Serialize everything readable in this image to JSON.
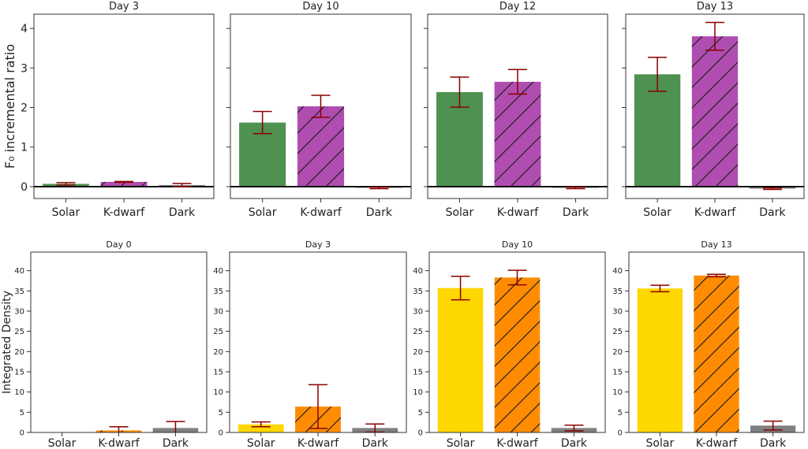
{
  "colors": {
    "solar_top": "#4e9150",
    "kdwarf_top": "#b04db0",
    "dark": "#808080",
    "solar_bottom": "#ffd700",
    "kdwarf_bottom": "#ff8c00",
    "error_bar": "#8b0000",
    "hatch": "#222222",
    "zero_line": "#000000",
    "axis": "#333333"
  },
  "chart_data": [
    {
      "type": "bar",
      "row": "top",
      "title": "Day 3",
      "ylabel": "F₀ incremental ratio",
      "categories": [
        "Solar",
        "K-dwarf",
        "Dark"
      ],
      "values": [
        0.07,
        0.12,
        0.04
      ],
      "errors": [
        0.03,
        0.01,
        0.04
      ],
      "ylim": [
        -0.3,
        4.36
      ],
      "yticks": [
        0,
        1,
        2,
        3,
        4
      ],
      "show_ytick_labels": true,
      "zero_line": true
    },
    {
      "type": "bar",
      "row": "top",
      "title": "Day 10",
      "ylabel": "",
      "categories": [
        "Solar",
        "K-dwarf",
        "Dark"
      ],
      "values": [
        1.62,
        2.03,
        -0.03
      ],
      "errors": [
        0.28,
        0.28,
        0.02
      ],
      "ylim": [
        -0.3,
        4.36
      ],
      "yticks": [
        0,
        1,
        2,
        3,
        4
      ],
      "show_ytick_labels": false,
      "zero_line": true
    },
    {
      "type": "bar",
      "row": "top",
      "title": "Day 12",
      "ylabel": "",
      "categories": [
        "Solar",
        "K-dwarf",
        "Dark"
      ],
      "values": [
        2.39,
        2.65,
        -0.03
      ],
      "errors": [
        0.38,
        0.31,
        0.02
      ],
      "ylim": [
        -0.3,
        4.36
      ],
      "yticks": [
        0,
        1,
        2,
        3,
        4
      ],
      "show_ytick_labels": false,
      "zero_line": true
    },
    {
      "type": "bar",
      "row": "top",
      "title": "Day 13",
      "ylabel": "",
      "categories": [
        "Solar",
        "K-dwarf",
        "Dark"
      ],
      "values": [
        2.84,
        3.8,
        -0.05
      ],
      "errors": [
        0.43,
        0.35,
        0.02
      ],
      "ylim": [
        -0.3,
        4.36
      ],
      "yticks": [
        0,
        1,
        2,
        3,
        4
      ],
      "show_ytick_labels": false,
      "zero_line": true
    },
    {
      "type": "bar",
      "row": "bottom",
      "title": "Day 0",
      "ylabel": "Integrated Density",
      "categories": [
        "Solar",
        "K-dwarf",
        "Dark"
      ],
      "values": [
        0.0,
        0.5,
        1.1
      ],
      "errors": [
        0.0,
        0.9,
        1.6
      ],
      "ylim": [
        0,
        44.6
      ],
      "yticks": [
        0,
        5,
        10,
        15,
        20,
        25,
        30,
        35,
        40
      ],
      "show_ytick_labels": true,
      "zero_line": false
    },
    {
      "type": "bar",
      "row": "bottom",
      "title": "Day 3",
      "ylabel": "",
      "categories": [
        "Solar",
        "K-dwarf",
        "Dark"
      ],
      "values": [
        2.0,
        6.4,
        1.1
      ],
      "errors": [
        0.6,
        5.4,
        1.0
      ],
      "ylim": [
        0,
        44.6
      ],
      "yticks": [
        0,
        5,
        10,
        15,
        20,
        25,
        30,
        35,
        40
      ],
      "show_ytick_labels": true,
      "zero_line": false
    },
    {
      "type": "bar",
      "row": "bottom",
      "title": "Day 10",
      "ylabel": "",
      "categories": [
        "Solar",
        "K-dwarf",
        "Dark"
      ],
      "values": [
        35.7,
        38.3,
        1.1
      ],
      "errors": [
        2.9,
        1.8,
        0.7
      ],
      "ylim": [
        0,
        44.6
      ],
      "yticks": [
        0,
        5,
        10,
        15,
        20,
        25,
        30,
        35,
        40
      ],
      "show_ytick_labels": true,
      "zero_line": false
    },
    {
      "type": "bar",
      "row": "bottom",
      "title": "Day 13",
      "ylabel": "",
      "categories": [
        "Solar",
        "K-dwarf",
        "Dark"
      ],
      "values": [
        35.6,
        38.8,
        1.7
      ],
      "errors": [
        0.8,
        0.3,
        1.1
      ],
      "ylim": [
        0,
        44.6
      ],
      "yticks": [
        0,
        5,
        10,
        15,
        20,
        25,
        30,
        35,
        40
      ],
      "show_ytick_labels": true,
      "zero_line": false
    }
  ]
}
